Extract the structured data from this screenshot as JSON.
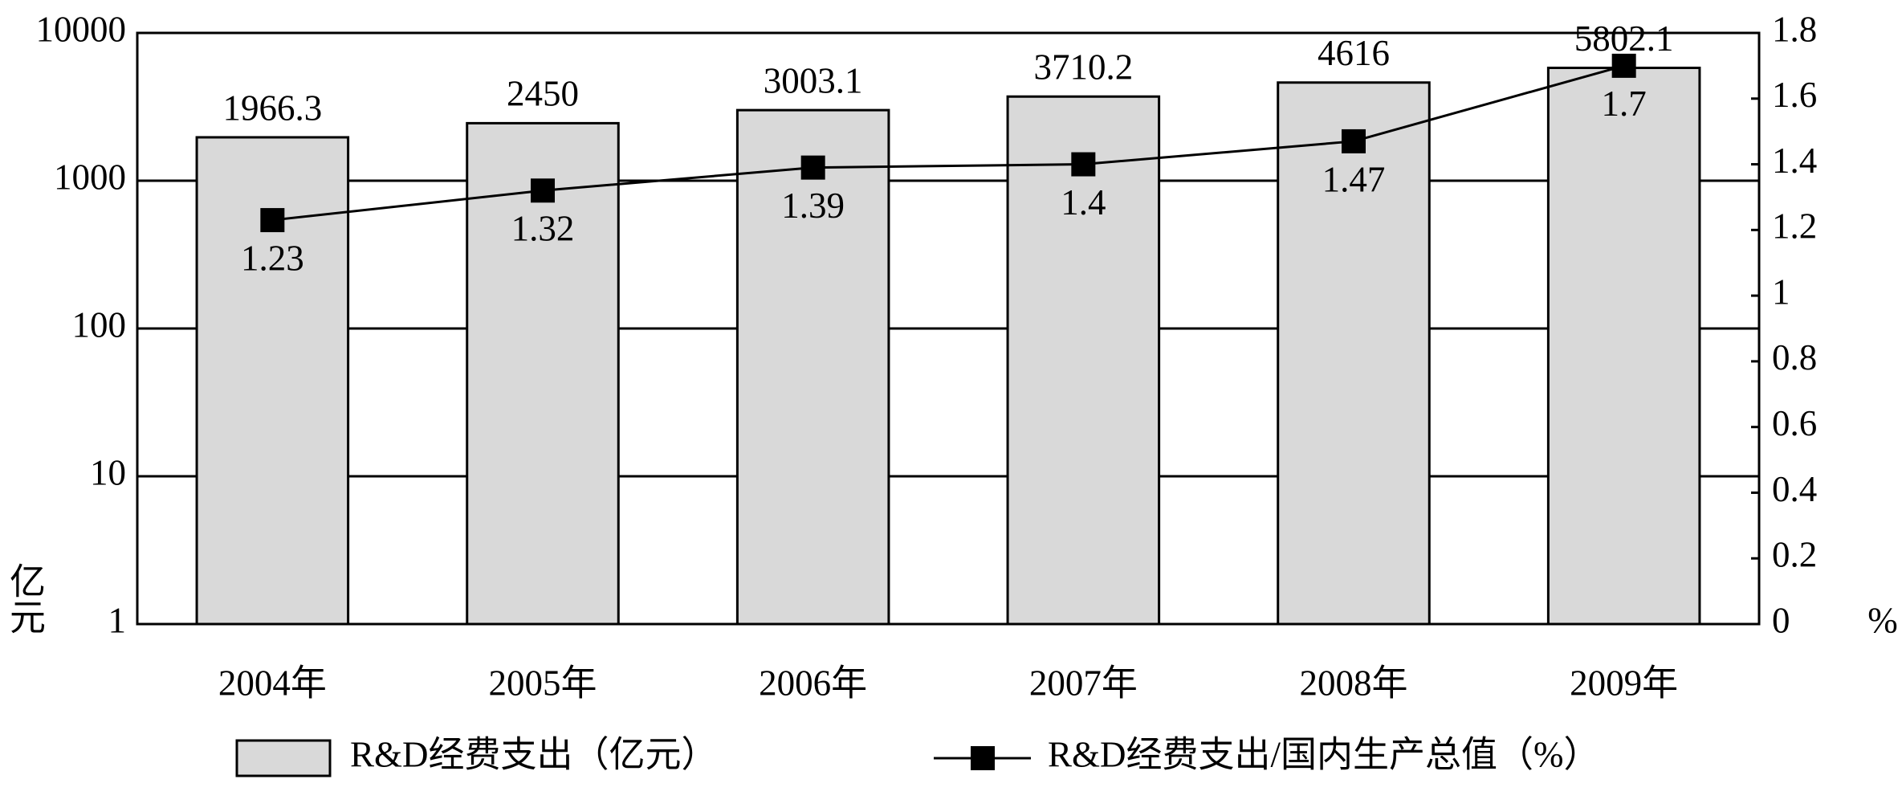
{
  "chart_data": {
    "type": "bar_line",
    "categories": [
      "2004年",
      "2005年",
      "2006年",
      "2007年",
      "2008年",
      "2009年"
    ],
    "series": [
      {
        "name": "R&D经费支出（亿元）",
        "type": "bar",
        "color": "#d9d9d9",
        "values": [
          1966.3,
          2450,
          3003.1,
          3710.2,
          4616,
          5802.1
        ]
      },
      {
        "name": "R&D经费支出/国内生产总值（%）",
        "type": "line",
        "axis": "y2",
        "color": "#000000",
        "values": [
          1.23,
          1.32,
          1.39,
          1.4,
          1.47,
          1.7
        ]
      }
    ],
    "y_label": "亿元",
    "y2_label": "%",
    "ylim": [
      1,
      10000
    ],
    "yticks": [
      1,
      10,
      100,
      1000,
      10000
    ],
    "ylog": true,
    "y2lim": [
      0,
      1.8
    ],
    "y2ticks": [
      0,
      0.2,
      0.4,
      0.6,
      0.8,
      1,
      1.2,
      1.4,
      1.6,
      1.8
    ],
    "grid": true,
    "legend": "bottom"
  }
}
